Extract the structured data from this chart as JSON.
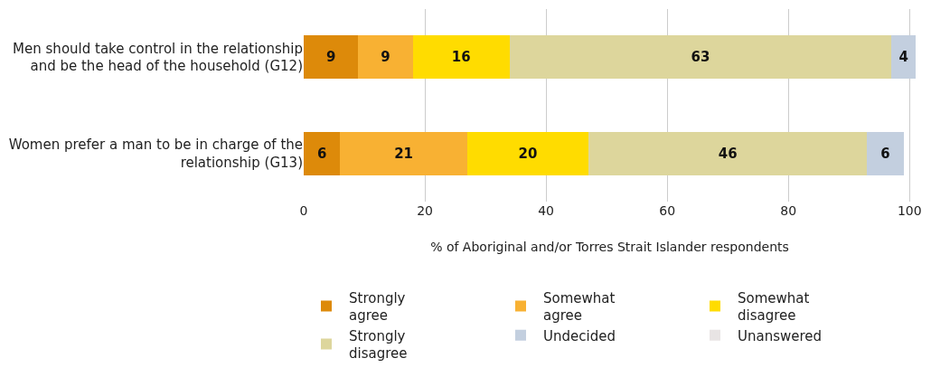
{
  "chart_data": {
    "type": "bar",
    "orientation": "horizontal",
    "stacked": true,
    "categories": [
      "Men should take control in the relationship and be the head of the household (G12)",
      "Women prefer a man to be in charge of the relationship (G13)"
    ],
    "series": [
      {
        "name": "Strongly agree",
        "color": "#dd8a0a",
        "values": [
          9,
          6
        ],
        "value_labels": [
          "9",
          "6"
        ]
      },
      {
        "name": "Somewhat agree",
        "color": "#f8b133",
        "values": [
          9,
          21
        ],
        "value_labels": [
          "9",
          "21"
        ]
      },
      {
        "name": "Somewhat disagree",
        "color": "#ffdc00",
        "values": [
          16,
          20
        ],
        "value_labels": [
          "16",
          "20"
        ]
      },
      {
        "name": "Strongly disagree",
        "color": "#ddd69c",
        "values": [
          63,
          46
        ],
        "value_labels": [
          "63",
          "46"
        ]
      },
      {
        "name": "Undecided",
        "color": "#c3cfdf",
        "values": [
          4,
          6
        ],
        "value_labels": [
          "4",
          "6"
        ]
      },
      {
        "name": "Unanswered",
        "color": "#e8e4e4",
        "values": [
          0,
          0
        ],
        "value_labels": [
          null,
          null
        ]
      }
    ],
    "xlabel": "% of Aboriginal and/or Torres Strait Islander respondents",
    "xlim": [
      0,
      101
    ],
    "xticks": [
      0,
      20,
      40,
      60,
      80,
      100
    ],
    "grid": "x",
    "legend": "bottom"
  }
}
